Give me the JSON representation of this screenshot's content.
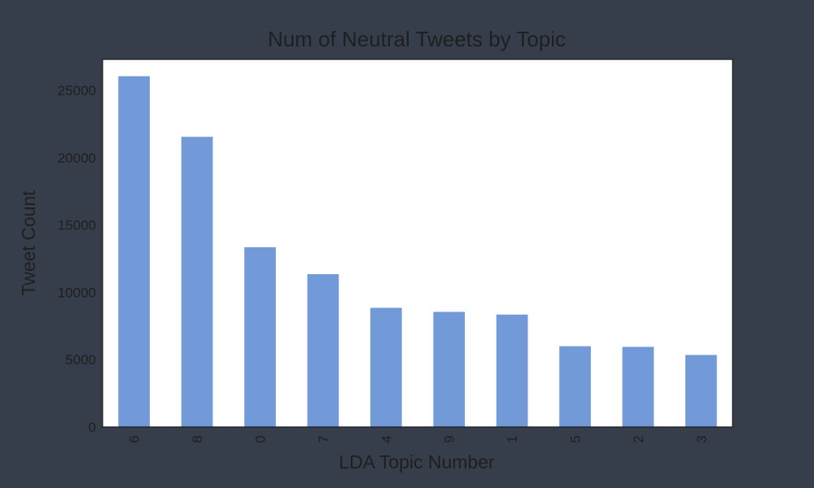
{
  "colors": {
    "background": "#363e4b",
    "plot_area": "#ffffff",
    "bar": "#729ad9",
    "text": "#1f1f1f"
  },
  "chart_data": {
    "type": "bar",
    "title": "Num of Neutral Tweets by Topic",
    "xlabel": "LDA Topic Number",
    "ylabel": "Tweet Count",
    "categories": [
      "6",
      "8",
      "0",
      "7",
      "4",
      "9",
      "1",
      "5",
      "2",
      "3"
    ],
    "values": [
      26050,
      21550,
      13350,
      11350,
      8850,
      8550,
      8350,
      6000,
      5950,
      5350
    ],
    "ylim": [
      0,
      27300
    ],
    "yticks": [
      0,
      5000,
      10000,
      15000,
      20000,
      25000
    ],
    "grid": false,
    "legend": "none"
  }
}
